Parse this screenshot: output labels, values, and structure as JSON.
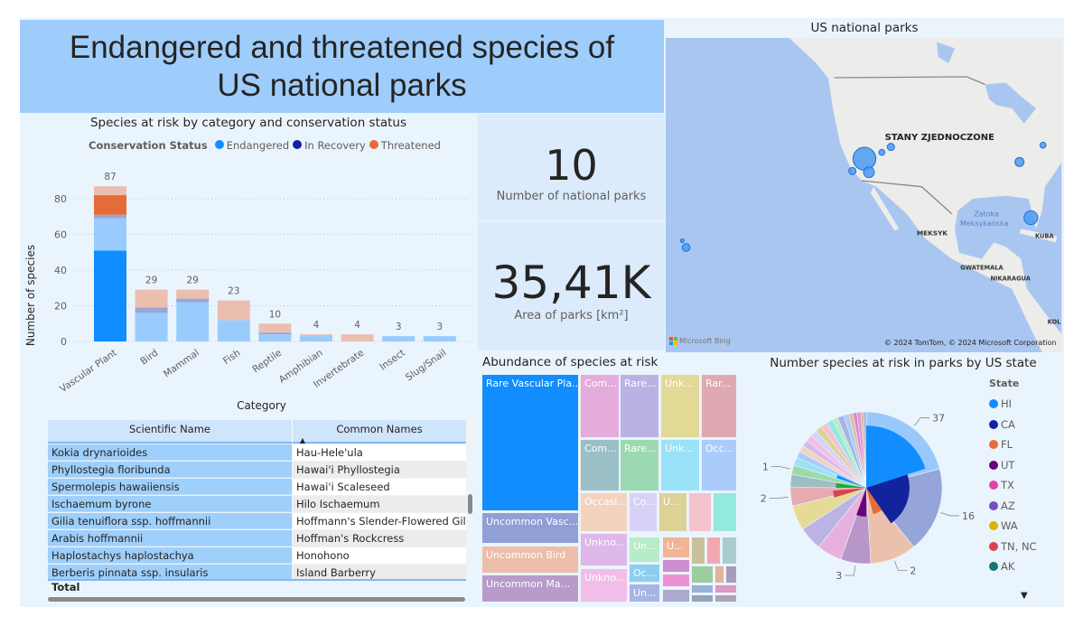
{
  "title": "Endangered and threatened species of US national parks",
  "bar_chart": {
    "chart_data": {
      "type": "bar",
      "stacked": true,
      "title": "Species at risk by category and conservation status",
      "xlabel": "Category",
      "ylabel": "Number of species",
      "ylim": [
        0,
        90
      ],
      "yticks": [
        0,
        20,
        40,
        60,
        80
      ],
      "grid": true,
      "legend_title": "Conservation Status",
      "legend": [
        {
          "name": "Endangered",
          "color": "#118dff"
        },
        {
          "name": "In Recovery",
          "color": "#12239e"
        },
        {
          "name": "Threatened",
          "color": "#e66c37"
        }
      ],
      "categories": [
        "Vascular Plant",
        "Bird",
        "Mammal",
        "Fish",
        "Reptile",
        "Amphibian",
        "Invertebrate",
        "Insect",
        "Slug/Snail"
      ],
      "totals": [
        87,
        29,
        29,
        23,
        10,
        4,
        4,
        3,
        3
      ],
      "bars": [
        [
          {
            "status": "Endangered",
            "value": 51,
            "color": "#118dff"
          },
          {
            "status": "Endangered",
            "value": 18,
            "color": "#99ccfd"
          },
          {
            "status": "In Recovery",
            "value": 2,
            "color": "#9aa5d9"
          },
          {
            "status": "Threatened",
            "value": 11,
            "color": "#e66c37"
          },
          {
            "status": "Threatened",
            "value": 5,
            "color": "#ebbfb0"
          }
        ],
        [
          {
            "status": "Endangered",
            "value": 16,
            "color": "#99ccfd"
          },
          {
            "status": "In Recovery",
            "value": 3,
            "color": "#9aa5d9"
          },
          {
            "status": "Threatened",
            "value": 10,
            "color": "#ebbfb0"
          }
        ],
        [
          {
            "status": "Endangered",
            "value": 22,
            "color": "#99ccfd"
          },
          {
            "status": "In Recovery",
            "value": 2,
            "color": "#9aa5d9"
          },
          {
            "status": "Threatened",
            "value": 5,
            "color": "#ebbfb0"
          }
        ],
        [
          {
            "status": "Endangered",
            "value": 12,
            "color": "#99ccfd"
          },
          {
            "status": "Threatened",
            "value": 11,
            "color": "#ebbfb0"
          }
        ],
        [
          {
            "status": "Endangered",
            "value": 4,
            "color": "#99ccfd"
          },
          {
            "status": "In Recovery",
            "value": 1,
            "color": "#9aa5d9"
          },
          {
            "status": "Threatened",
            "value": 5,
            "color": "#ebbfb0"
          }
        ],
        [
          {
            "status": "Endangered",
            "value": 3,
            "color": "#99ccfd"
          },
          {
            "status": "Threatened",
            "value": 1,
            "color": "#ebbfb0"
          }
        ],
        [
          {
            "status": "Threatened",
            "value": 4,
            "color": "#ebbfb0"
          }
        ],
        [
          {
            "status": "Endangered",
            "value": 3,
            "color": "#99ccfd"
          }
        ],
        [
          {
            "status": "Endangered",
            "value": 3,
            "color": "#99ccfd"
          }
        ]
      ]
    }
  },
  "table": {
    "columns": [
      "Scientific Name",
      "Common Names"
    ],
    "sort_indicator": "▲",
    "rows": [
      [
        "Kokia drynarioides",
        "Hau-Hele'ula"
      ],
      [
        "Phyllostegia floribunda",
        "Hawai'i Phyllostegia"
      ],
      [
        "Spermolepis hawaiiensis",
        "Hawai'i Scaleseed"
      ],
      [
        "Ischaemum byrone",
        "Hilo Ischaemum"
      ],
      [
        "Gilia tenuiflora ssp. hoffmannii",
        "Hoffmann's Slender-Flowered Gilia"
      ],
      [
        "Arabis hoffmannii",
        "Hoffman's Rockcress"
      ],
      [
        "Haplostachys haplostachya",
        "Honohono"
      ],
      [
        "Berberis pinnata ssp. insularis",
        "Island Barberry"
      ]
    ],
    "total_label": "Total"
  },
  "kpis": [
    {
      "value": "10",
      "label": "Number of national parks"
    },
    {
      "value": "35,41K",
      "label": "Area of parks [km²]"
    }
  ],
  "map": {
    "title": "US national parks",
    "labels": {
      "country": "STANY ZJEDNOCZONE",
      "gulf1": "Zatoka",
      "gulf2": "Meksykańska",
      "mexico": "MEKSYK",
      "cuba": "KUBA",
      "guatemala": "GWATEMALA",
      "nicaragua": "NIKARAGUA",
      "colombia": "KOL"
    },
    "attribution": "© 2024 TomTom, © 2024 Microsoft Corporation",
    "logo": "Microsoft Bing",
    "bubble_color": "#4a9bf0"
  },
  "treemap": {
    "title": "Abundance of species at risk",
    "tiles": [
      {
        "label": "Rare Vascular Pla...",
        "color": "#118dff"
      },
      {
        "label": "Uncommon Vasc...",
        "color": "#909fd6"
      },
      {
        "label": "Uncommon Bird",
        "color": "#ecbfaa"
      },
      {
        "label": "Uncommon Ma...",
        "color": "#b99bcb"
      },
      {
        "label": "Com...",
        "color": "#e4acdb"
      },
      {
        "label": "Rare...",
        "color": "#bbb2e3"
      },
      {
        "label": "Unk...",
        "color": "#e2d996"
      },
      {
        "label": "Rar...",
        "color": "#dfa9b1"
      },
      {
        "label": "Com...",
        "color": "#9abfc6"
      },
      {
        "label": "Rare...",
        "color": "#9cd9b2"
      },
      {
        "label": "Unk...",
        "color": "#99e2f8"
      },
      {
        "label": "Occ...",
        "color": "#a9ccfb"
      },
      {
        "label": "Occasi...",
        "color": "#f3d3bd"
      },
      {
        "label": "Co...",
        "color": "#d8d2f9"
      },
      {
        "label": "U...",
        "color": "#dcd296"
      },
      {
        "label": "",
        "color": "#f2c2cd"
      },
      {
        "label": "",
        "color": "#93e8e0"
      },
      {
        "label": "Unkno...",
        "color": "#ddb8e8"
      },
      {
        "label": "Unkno...",
        "color": "#f2bee9"
      },
      {
        "label": "Un...",
        "color": "#b6ecc8"
      },
      {
        "label": "U...",
        "color": "#f2b496"
      },
      {
        "label": "Oc...",
        "color": "#8ecdf0"
      },
      {
        "label": "Un...",
        "color": "#a6b5e4"
      },
      {
        "label": "",
        "color": "#cc8fd0"
      },
      {
        "label": "",
        "color": "#ec92d3"
      },
      {
        "label": "",
        "color": "#aba9cc"
      },
      {
        "label": "",
        "color": "#cbbe9b"
      },
      {
        "label": "",
        "color": "#f2a8b2"
      },
      {
        "label": "",
        "color": "#a7cdd0"
      },
      {
        "label": "",
        "color": "#9dcc9f"
      },
      {
        "label": "",
        "color": "#e2b39e"
      },
      {
        "label": "",
        "color": "#a99bba"
      },
      {
        "label": "",
        "color": "#96b2da"
      },
      {
        "label": "",
        "color": "#dd98c4"
      },
      {
        "label": "",
        "color": "#94a5b8"
      },
      {
        "label": "",
        "color": "#a9a5b8"
      }
    ]
  },
  "pie": {
    "chart_data": {
      "type": "pie",
      "title": "Number species at risk in parks by US state",
      "legend_title": "State",
      "legend": [
        {
          "name": "HI",
          "color": "#118dff"
        },
        {
          "name": "CA",
          "color": "#12239e"
        },
        {
          "name": "FL",
          "color": "#e66c37"
        },
        {
          "name": "UT",
          "color": "#6b007b"
        },
        {
          "name": "TX",
          "color": "#e044a7"
        },
        {
          "name": "AZ",
          "color": "#744ec2"
        },
        {
          "name": "WA",
          "color": "#d9b300"
        },
        {
          "name": "TN, NC",
          "color": "#d64550"
        },
        {
          "name": "AK",
          "color": "#197278"
        }
      ],
      "outer_slices": [
        {
          "value": 75,
          "color": "#99c9fb",
          "label": "37"
        },
        {
          "value": 65,
          "color": "#95a5d9",
          "label": "16"
        },
        {
          "value": 35,
          "color": "#ebc1ae",
          "label": "2"
        },
        {
          "value": 23,
          "color": "#b796c9",
          "label": "3"
        },
        {
          "value": 19,
          "color": "#e8b0de",
          "label": ""
        },
        {
          "value": 18,
          "color": "#bbb3e4",
          "label": ""
        },
        {
          "value": 19,
          "color": "#e6db96",
          "label": ""
        },
        {
          "value": 14,
          "color": "#e6aab0",
          "label": "2"
        },
        {
          "value": 10,
          "color": "#9bbfc2",
          "label": ""
        },
        {
          "value": 7,
          "color": "#9ed9a8",
          "label": "1"
        },
        {
          "value": 6,
          "color": "#99e2f8",
          "label": ""
        },
        {
          "value": 5,
          "color": "#a9ccfb",
          "label": ""
        },
        {
          "value": 5,
          "color": "#f3d3bd",
          "label": ""
        },
        {
          "value": 5,
          "color": "#dcb8e8",
          "label": ""
        },
        {
          "value": 5,
          "color": "#f2bee9",
          "label": ""
        },
        {
          "value": 5,
          "color": "#d8d2f9",
          "label": ""
        },
        {
          "value": 5,
          "color": "#dcd296",
          "label": ""
        },
        {
          "value": 5,
          "color": "#f2c2cd",
          "label": ""
        },
        {
          "value": 5,
          "color": "#93e8e0",
          "label": ""
        },
        {
          "value": 4,
          "color": "#b6ecc8",
          "label": ""
        },
        {
          "value": 5,
          "color": "#a6b5e4",
          "label": ""
        },
        {
          "value": 4,
          "color": "#a9ccfb",
          "label": ""
        },
        {
          "value": 3,
          "color": "#f2b496",
          "label": ""
        },
        {
          "value": 3,
          "color": "#cc8fd0",
          "label": ""
        },
        {
          "value": 3,
          "color": "#ec92d3",
          "label": ""
        },
        {
          "value": 2,
          "color": "#cbbe9b",
          "label": ""
        },
        {
          "value": 2,
          "color": "#aba9cc",
          "label": ""
        }
      ],
      "highlighted": [
        {
          "state": "HI",
          "start": 0,
          "end": 72,
          "level": 0.82,
          "color": "#118dff"
        },
        {
          "state": "CA",
          "start": 72,
          "end": 145,
          "level": 0.57,
          "color": "#12239e"
        },
        {
          "state": "FL",
          "start": 145,
          "end": 165,
          "level": 0.36,
          "color": "#e66c37"
        },
        {
          "state": "UT",
          "start": 180,
          "end": 200,
          "level": 0.38,
          "color": "#6b007b"
        },
        {
          "state": "TN, NC",
          "start": 253,
          "end": 265,
          "level": 0.44,
          "color": "#d64550"
        },
        {
          "state": "",
          "start": 270,
          "end": 279,
          "level": 0.4,
          "color": "#1aab40"
        },
        {
          "state": "",
          "start": 288,
          "end": 294,
          "level": 0.41,
          "color": "#118dff"
        }
      ]
    }
  }
}
